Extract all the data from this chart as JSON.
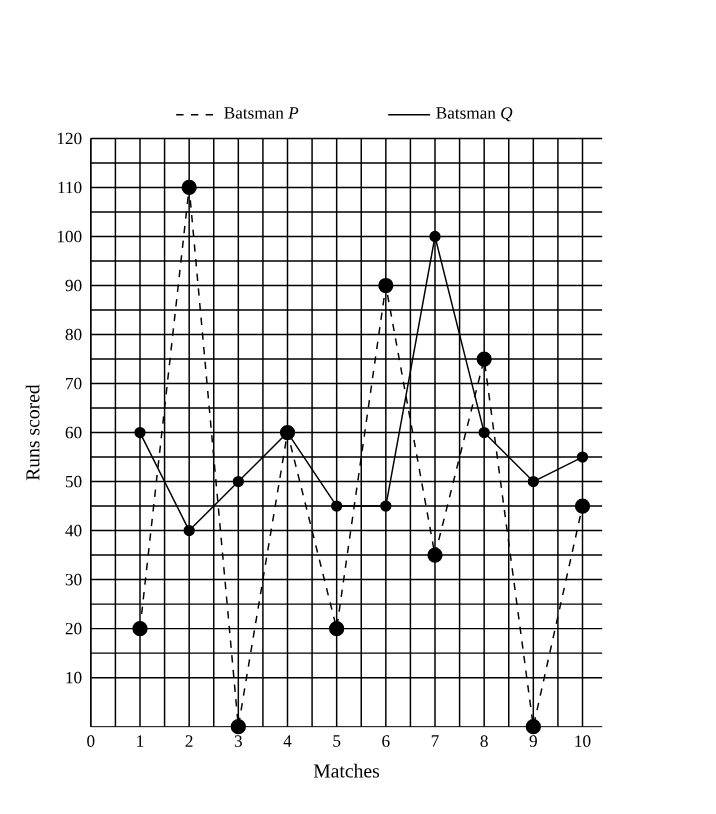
{
  "chart_data": {
    "type": "line",
    "xlabel": "Matches",
    "ylabel": "Runs scored",
    "x": [
      1,
      2,
      3,
      4,
      5,
      6,
      7,
      8,
      9,
      10
    ],
    "series": [
      {
        "name": "Batsman *P*",
        "color": "#000000",
        "line_style": "dashed",
        "values": [
          20,
          110,
          0,
          60,
          20,
          90,
          35,
          75,
          0,
          45
        ]
      },
      {
        "name": "Batsman *Q*",
        "color": "#000000",
        "line_style": "solid",
        "values": [
          60,
          40,
          50,
          60,
          45,
          45,
          100,
          60,
          50,
          55
        ]
      }
    ],
    "xlim": [
      0,
      10.4
    ],
    "ylim": [
      0,
      120
    ],
    "xticks": [
      0,
      1,
      2,
      3,
      4,
      5,
      6,
      7,
      8,
      9,
      10
    ],
    "yticks": [
      10,
      20,
      30,
      40,
      50,
      60,
      70,
      80,
      90,
      100,
      110,
      120
    ],
    "grid": true,
    "legend": "top",
    "marker": "circle"
  }
}
